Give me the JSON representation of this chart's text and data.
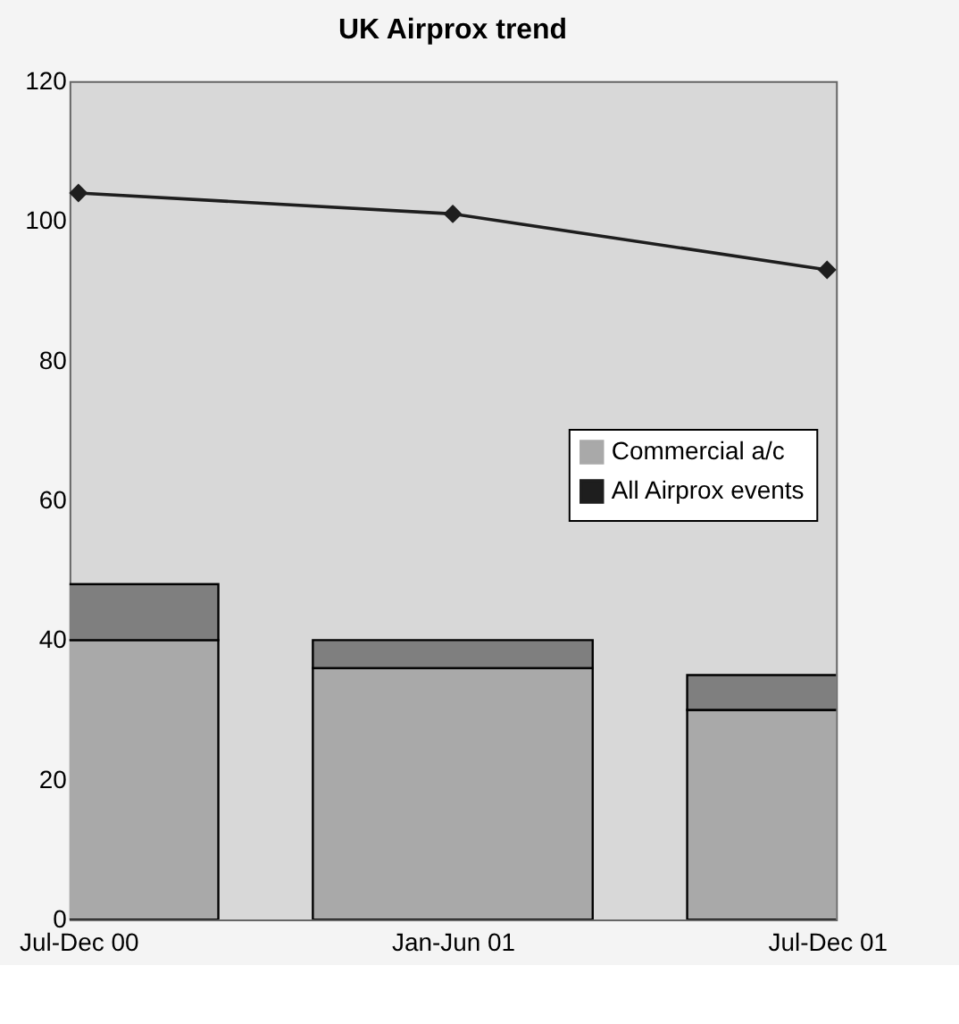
{
  "chart_data": {
    "type": "bar",
    "title": "UK Airprox trend",
    "stacked": true,
    "categories": [
      "Jul-Dec 00",
      "Jan-Jun 01",
      "Jul-Dec 01"
    ],
    "series": [
      {
        "name": "Commercial a/c",
        "color": "#a9a9a9",
        "values": [
          40,
          36,
          30
        ]
      },
      {
        "color": "#7f7f7f",
        "values": [
          8,
          4,
          5
        ]
      },
      {
        "name": "All Airprox events",
        "type": "line",
        "color": "#1e1e1e",
        "values": [
          104,
          101,
          93
        ],
        "marker": "diamond",
        "line_style": "solid"
      }
    ],
    "ylim": [
      0,
      120
    ],
    "yticks": [
      0,
      20,
      40,
      60,
      80,
      100,
      120
    ],
    "grid": false,
    "legend": "right"
  }
}
